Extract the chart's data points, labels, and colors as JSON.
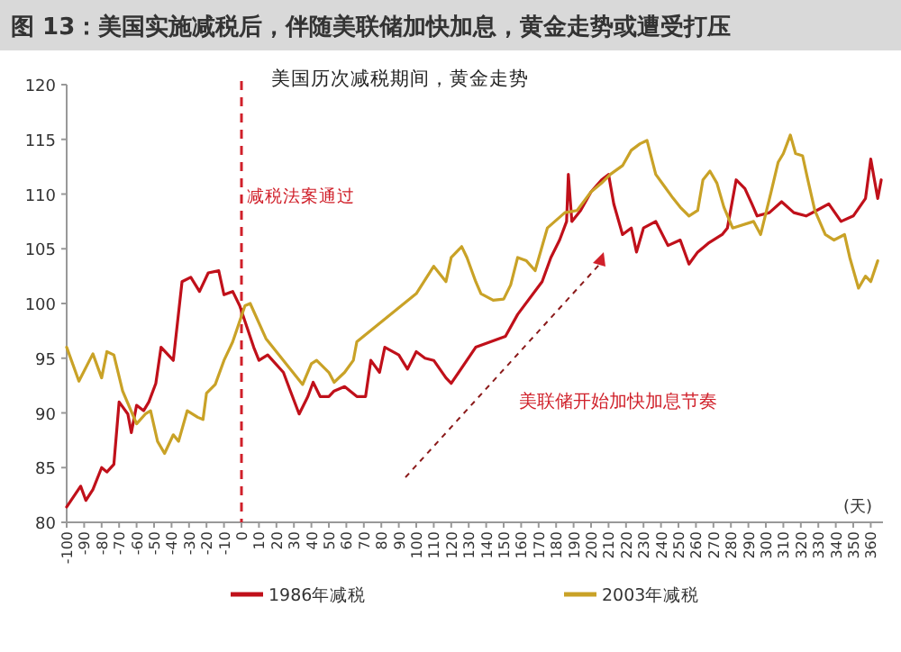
{
  "chart_data": {
    "type": "line",
    "title": "图 13：美国实施减税后，伴随美联储加快加息，黄金走势或遭受打压",
    "subtitle": "美国历次减税期间，黄金走势",
    "xlabel": "(天)",
    "xlim": [
      -100,
      367
    ],
    "ylim": [
      80,
      120
    ],
    "xticks": [
      -100,
      -90,
      -80,
      -70,
      -60,
      -50,
      -40,
      -30,
      -20,
      -10,
      0,
      10,
      20,
      30,
      40,
      50,
      60,
      70,
      80,
      90,
      100,
      110,
      120,
      130,
      140,
      150,
      160,
      170,
      180,
      190,
      200,
      210,
      220,
      230,
      240,
      250,
      260,
      270,
      280,
      290,
      300,
      310,
      320,
      330,
      340,
      350,
      360
    ],
    "yticks": [
      80,
      85,
      90,
      95,
      100,
      105,
      110,
      115,
      120
    ],
    "legend": "bottom",
    "ref_lines": [
      {
        "axis": "x",
        "value": 0,
        "label": "减税法案通过",
        "color": "#d0202a",
        "line_style": "dashed"
      }
    ],
    "annotations": [
      "美联储开始加快加息节奏"
    ],
    "series": [
      {
        "name": "1986年减税",
        "color": "#c0101a",
        "x": [
          -100,
          -92,
          -89,
          -85,
          -80,
          -77,
          -73,
          -70,
          -65,
          -63,
          -60,
          -56,
          -53,
          -49,
          -46,
          -39,
          -34,
          -29,
          -24,
          -19,
          -13,
          -10,
          -5,
          -1,
          7,
          10,
          15,
          24,
          28,
          33,
          38,
          41,
          45,
          50,
          53,
          59,
          66,
          71,
          74,
          79,
          82,
          90,
          95,
          100,
          105,
          110,
          117,
          120,
          134,
          151,
          158,
          172,
          177,
          182,
          186,
          187,
          189,
          194,
          200,
          206,
          210,
          213,
          218,
          223,
          226,
          230,
          237,
          244,
          251,
          256,
          261,
          267,
          275,
          278,
          283,
          288,
          292,
          295,
          302,
          309,
          316,
          323,
          329,
          336,
          343,
          350,
          357,
          360,
          364,
          366
        ],
        "values": [
          81.4,
          83.3,
          82,
          83,
          85,
          84.6,
          85.3,
          91,
          89.9,
          88.2,
          90.7,
          90.2,
          91,
          92.7,
          96,
          94.8,
          102,
          102.4,
          101.1,
          102.8,
          103,
          100.8,
          101.1,
          99.8,
          96,
          94.8,
          95.3,
          93.7,
          92,
          89.9,
          91.5,
          92.8,
          91.5,
          91.5,
          92,
          92.4,
          91.5,
          91.5,
          94.8,
          93.7,
          96,
          95.3,
          94,
          95.6,
          95,
          94.8,
          93.2,
          92.7,
          96,
          97,
          99,
          102,
          104.2,
          105.8,
          107.5,
          111.8,
          107.5,
          108.5,
          110.2,
          111.3,
          111.8,
          109.1,
          106.3,
          106.9,
          104.7,
          106.9,
          107.5,
          105.3,
          105.8,
          103.6,
          104.7,
          105.5,
          106.3,
          106.9,
          111.3,
          110.5,
          109.1,
          108,
          108.3,
          109.3,
          108.3,
          108,
          108.5,
          109.1,
          107.5,
          108,
          109.6,
          113.2,
          109.6,
          111.3
        ]
      },
      {
        "name": "2003年减税",
        "color": "#c9a227",
        "x": [
          -100,
          -93,
          -85,
          -80,
          -77,
          -73,
          -68,
          -60,
          -55,
          -52,
          -48,
          -44,
          -39,
          -36,
          -31,
          -25,
          -22,
          -20,
          -15,
          -10,
          -5,
          2,
          5,
          14,
          35,
          40,
          43,
          50,
          53,
          59,
          64,
          66,
          100,
          110,
          117,
          120,
          126,
          129,
          134,
          137,
          144,
          150,
          154,
          158,
          163,
          168,
          175,
          185,
          192,
          200,
          206,
          211,
          218,
          223,
          228,
          232,
          237,
          242,
          247,
          251,
          256,
          261,
          264,
          268,
          272,
          276,
          281,
          293,
          297,
          303,
          307,
          310,
          314,
          317,
          321,
          324,
          328,
          334,
          339,
          345,
          348,
          353,
          357,
          360,
          364
        ],
        "values": [
          96,
          92.9,
          95.4,
          93.2,
          95.6,
          95.3,
          92,
          89,
          89.9,
          90.2,
          87.4,
          86.3,
          88,
          87.4,
          90.2,
          89.6,
          89.4,
          91.8,
          92.6,
          94.8,
          96.5,
          99.8,
          100,
          96.8,
          92.6,
          94.5,
          94.8,
          93.7,
          92.8,
          93.7,
          94.8,
          96.5,
          100.9,
          103.4,
          102,
          104.2,
          105.2,
          104.2,
          102,
          100.9,
          100.3,
          100.4,
          101.7,
          104.2,
          103.9,
          103,
          106.9,
          108.3,
          108.5,
          110.2,
          111,
          111.8,
          112.6,
          114,
          114.6,
          114.9,
          111.8,
          110.7,
          109.6,
          108.8,
          108,
          108.5,
          111.3,
          112.1,
          111,
          108.8,
          106.9,
          107.5,
          106.3,
          110.2,
          112.9,
          113.7,
          115.4,
          113.7,
          113.5,
          111.3,
          108.5,
          106.3,
          105.8,
          106.3,
          104.2,
          101.4,
          102.5,
          102,
          103.9
        ]
      }
    ]
  }
}
